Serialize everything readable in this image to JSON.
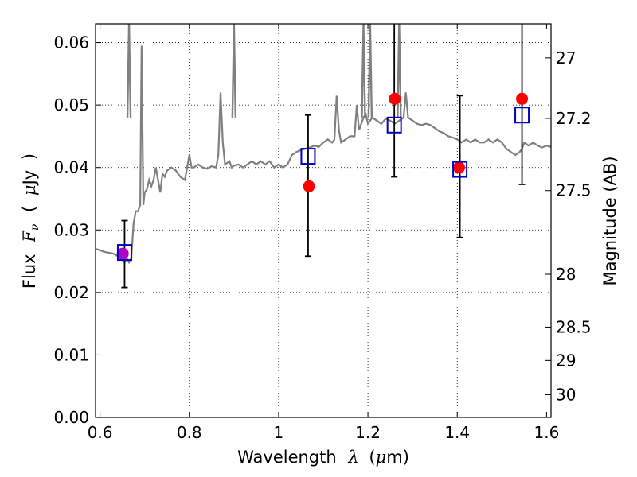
{
  "chart_data": {
    "type": "scatter",
    "xlabel_text": "Wavelength",
    "xlabel_symbol": "λ",
    "xlabel_unit_open": "(",
    "xlabel_unit_mu": "μ",
    "xlabel_unit_rest": "m)",
    "ylabel_text": "Flux",
    "ylabel_symbol_F": "F",
    "ylabel_symbol_nu": "ν",
    "ylabel_unit_open": "(",
    "ylabel_unit_mu": "μ",
    "ylabel_unit_rest": "Jy",
    "ylabel_unit_close": ")",
    "y2label": "Magnitude (AB)",
    "xlim": [
      0.59,
      1.61
    ],
    "ylim": [
      0.0,
      0.063
    ],
    "grid": true,
    "x_ticks": [
      0.6,
      0.8,
      1.0,
      1.2,
      1.4,
      1.6
    ],
    "x_tick_labels": [
      "0.6",
      "0.8",
      "1",
      "1.2",
      "1.4",
      "1.6"
    ],
    "y_ticks": [
      0.0,
      0.01,
      0.02,
      0.03,
      0.04,
      0.05,
      0.06
    ],
    "y_tick_labels": [
      "0.00",
      "0.01",
      "0.02",
      "0.03",
      "0.04",
      "0.05",
      "0.06"
    ],
    "y2_ticks": [
      27,
      27.2,
      27.5,
      28,
      28.5,
      29,
      30
    ],
    "y2_tick_labels": [
      "27",
      "27.2",
      "27.5",
      "28",
      "28.5",
      "29",
      "30"
    ],
    "colors": {
      "spectrum": "#808080",
      "observed": "#ff0000",
      "model": "#0000cc",
      "errorbar": "#000000",
      "overlap": "#b000c0"
    },
    "series": [
      {
        "type": "line",
        "points": [
          [
            0.59,
            0.027
          ],
          [
            0.61,
            0.0265
          ],
          [
            0.63,
            0.0262
          ],
          [
            0.64,
            0.0258
          ],
          [
            0.65,
            0.0252
          ],
          [
            0.655,
            0.0248
          ],
          [
            0.66,
            0.0255
          ],
          [
            0.665,
            0.0248
          ],
          [
            0.67,
            0.0255
          ],
          [
            0.675,
            0.031
          ],
          [
            0.68,
            0.033
          ],
          [
            0.685,
            0.033
          ],
          [
            0.69,
            0.034
          ],
          [
            0.693,
            0.0595
          ],
          [
            0.697,
            0.034
          ],
          [
            0.7,
            0.036
          ],
          [
            0.705,
            0.0365
          ],
          [
            0.71,
            0.038
          ],
          [
            0.715,
            0.037
          ],
          [
            0.72,
            0.038
          ],
          [
            0.725,
            0.04
          ],
          [
            0.73,
            0.038
          ],
          [
            0.735,
            0.036
          ],
          [
            0.74,
            0.039
          ],
          [
            0.745,
            0.0385
          ],
          [
            0.75,
            0.0395
          ],
          [
            0.76,
            0.04
          ],
          [
            0.77,
            0.0395
          ],
          [
            0.78,
            0.0385
          ],
          [
            0.79,
            0.038
          ],
          [
            0.8,
            0.042
          ],
          [
            0.805,
            0.04
          ],
          [
            0.81,
            0.04
          ],
          [
            0.82,
            0.0405
          ],
          [
            0.83,
            0.04
          ],
          [
            0.84,
            0.0398
          ],
          [
            0.85,
            0.0402
          ],
          [
            0.86,
            0.04
          ],
          [
            0.865,
            0.042
          ],
          [
            0.87,
            0.052
          ],
          [
            0.875,
            0.044
          ],
          [
            0.88,
            0.0405
          ],
          [
            0.89,
            0.041
          ],
          [
            0.895,
            0.04
          ],
          [
            0.9,
            0.0403
          ],
          [
            0.91,
            0.0405
          ],
          [
            0.92,
            0.04
          ],
          [
            0.93,
            0.0405
          ],
          [
            0.94,
            0.041
          ],
          [
            0.95,
            0.0405
          ],
          [
            0.96,
            0.041
          ],
          [
            0.97,
            0.0405
          ],
          [
            0.98,
            0.041
          ],
          [
            0.99,
            0.04
          ],
          [
            1.0,
            0.0405
          ],
          [
            1.01,
            0.04
          ],
          [
            1.02,
            0.0405
          ],
          [
            1.03,
            0.042
          ],
          [
            1.04,
            0.0425
          ],
          [
            1.05,
            0.0428
          ],
          [
            1.06,
            0.043
          ],
          [
            1.07,
            0.0432
          ],
          [
            1.08,
            0.0435
          ],
          [
            1.09,
            0.0433
          ],
          [
            1.1,
            0.044
          ],
          [
            1.11,
            0.0445
          ],
          [
            1.12,
            0.044
          ],
          [
            1.125,
            0.0445
          ],
          [
            1.13,
            0.0515
          ],
          [
            1.135,
            0.046
          ],
          [
            1.14,
            0.044
          ],
          [
            1.15,
            0.0445
          ],
          [
            1.16,
            0.045
          ],
          [
            1.17,
            0.045
          ],
          [
            1.175,
            0.05
          ],
          [
            1.18,
            0.046
          ],
          [
            1.19,
            0.048
          ],
          [
            1.195,
            0.0485
          ],
          [
            1.2,
            0.047
          ],
          [
            1.21,
            0.048
          ],
          [
            1.22,
            0.0475
          ],
          [
            1.23,
            0.047
          ],
          [
            1.24,
            0.0478
          ],
          [
            1.25,
            0.0475
          ],
          [
            1.26,
            0.047
          ],
          [
            1.27,
            0.0475
          ],
          [
            1.28,
            0.048
          ],
          [
            1.285,
            0.052
          ],
          [
            1.29,
            0.048
          ],
          [
            1.3,
            0.0475
          ],
          [
            1.31,
            0.047
          ],
          [
            1.32,
            0.0468
          ],
          [
            1.33,
            0.047
          ],
          [
            1.34,
            0.0468
          ],
          [
            1.35,
            0.0463
          ],
          [
            1.36,
            0.0458
          ],
          [
            1.37,
            0.0455
          ],
          [
            1.38,
            0.045
          ],
          [
            1.39,
            0.0448
          ],
          [
            1.4,
            0.0445
          ],
          [
            1.41,
            0.044
          ],
          [
            1.42,
            0.0445
          ],
          [
            1.43,
            0.044
          ],
          [
            1.44,
            0.0445
          ],
          [
            1.45,
            0.044
          ],
          [
            1.46,
            0.044
          ],
          [
            1.47,
            0.0445
          ],
          [
            1.48,
            0.044
          ],
          [
            1.49,
            0.0445
          ],
          [
            1.5,
            0.044
          ],
          [
            1.51,
            0.043
          ],
          [
            1.52,
            0.0425
          ],
          [
            1.53,
            0.042
          ],
          [
            1.54,
            0.0425
          ],
          [
            1.545,
            0.043
          ],
          [
            1.55,
            0.044
          ],
          [
            1.56,
            0.0435
          ],
          [
            1.57,
            0.044
          ],
          [
            1.58,
            0.0435
          ],
          [
            1.59,
            0.0432
          ],
          [
            1.6,
            0.0435
          ],
          [
            1.61,
            0.0433
          ]
        ]
      },
      {
        "type": "scatter",
        "marker": "filled-circle",
        "points": [
          [
            0.651,
            0.0262
          ],
          [
            1.068,
            0.037
          ],
          [
            1.26,
            0.051
          ],
          [
            1.404,
            0.04
          ],
          [
            1.545,
            0.051
          ]
        ]
      },
      {
        "type": "scatter",
        "marker": "open-square",
        "points": [
          [
            0.655,
            0.0264
          ],
          [
            1.066,
            0.0418
          ],
          [
            1.259,
            0.0468
          ],
          [
            1.406,
            0.0397
          ],
          [
            1.545,
            0.0484
          ]
        ],
        "errors": [
          [
            0.0208,
            0.0315
          ],
          [
            0.0258,
            0.0484
          ],
          [
            0.0385,
            0.064
          ],
          [
            0.0288,
            0.0515
          ],
          [
            0.0373,
            0.064
          ]
        ]
      }
    ],
    "emission_spikes": [
      {
        "x": 0.665,
        "y_top": 0.063
      },
      {
        "x": 0.9,
        "y_top": 0.063
      },
      {
        "x": 1.19,
        "y_top": 0.063
      },
      {
        "x": 1.205,
        "y_top": 0.063
      },
      {
        "x": 1.27,
        "y_top": 0.063
      }
    ]
  }
}
